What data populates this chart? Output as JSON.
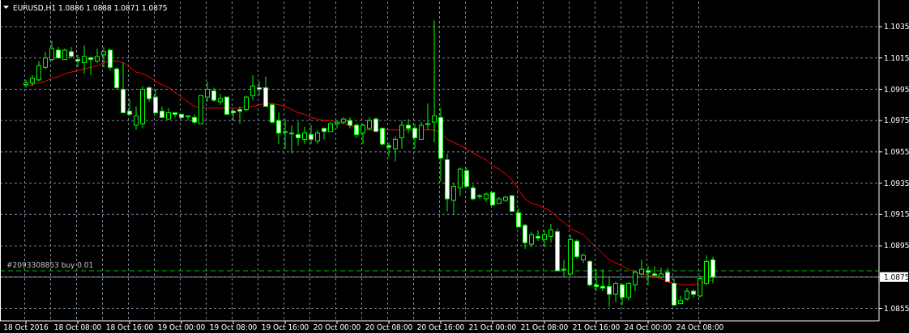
{
  "chart_data": {
    "type": "candlestick",
    "title": "EURUSD,H1 1.0886 1.0888 1.0871 1.0875",
    "categories": [
      "18 Oct 2016",
      null,
      null,
      null,
      null,
      null,
      null,
      null,
      "18 Oct 08:00",
      null,
      null,
      null,
      null,
      null,
      null,
      null,
      "18 Oct 16:00",
      null,
      null,
      null,
      null,
      null,
      null,
      null,
      "19 Oct 00:00",
      null,
      null,
      null,
      null,
      null,
      null,
      null,
      "19 Oct 08:00",
      null,
      null,
      null,
      null,
      null,
      null,
      null,
      "19 Oct 16:00",
      null,
      null,
      null,
      null,
      null,
      null,
      null,
      "20 Oct 00:00",
      null,
      null,
      null,
      null,
      null,
      null,
      null,
      "20 Oct 08:00",
      null,
      null,
      null,
      null,
      null,
      null,
      null,
      "20 Oct 16:00",
      null,
      null,
      null,
      null,
      null,
      null,
      null,
      "21 Oct 00:00",
      null,
      null,
      null,
      null,
      null,
      null,
      null,
      "21 Oct 08:00",
      null,
      null,
      null,
      null,
      null,
      null,
      null,
      "21 Oct 16:00",
      null,
      null,
      null,
      null,
      null,
      null,
      null,
      "24 Oct 00:00",
      null,
      null,
      null,
      null,
      null,
      null,
      null,
      "24 Oct 08:00",
      null,
      null
    ],
    "series": [
      {
        "type": "line",
        "color": "#ff0000",
        "values": [
          1.0997,
          1.0998,
          1.0999,
          1.1,
          1.1002,
          1.1003,
          1.1005,
          1.1006,
          1.1007,
          1.1008,
          1.1009,
          1.101,
          1.1012,
          1.1013,
          1.1013,
          1.1012,
          1.1009,
          1.1006,
          1.1005,
          1.1003,
          1.1,
          1.0998,
          1.0996,
          1.0993,
          1.099,
          1.0987,
          1.0984,
          1.0983,
          1.0983,
          1.0983,
          1.0983,
          1.0983,
          1.0983,
          1.0983,
          1.0984,
          1.0984,
          1.0985,
          1.0986,
          1.0986,
          1.0985,
          1.0984,
          1.0982,
          1.098,
          1.0979,
          1.0977,
          1.0976,
          1.0975,
          1.0975,
          1.0974,
          1.0973,
          1.0972,
          1.097,
          1.0969,
          1.0969,
          1.0969,
          1.0969,
          1.0969,
          1.0969,
          1.0969,
          1.0969,
          1.0969,
          1.0969,
          1.0969,
          1.0969,
          1.0967,
          1.0963,
          1.0961,
          1.0959,
          1.0957,
          1.0954,
          1.0952,
          1.095,
          1.0946,
          1.0944,
          1.0941,
          1.0937,
          1.0931,
          1.0925,
          1.0922,
          1.0921,
          1.0919,
          1.0917,
          1.0913,
          1.091,
          1.0906,
          1.0904,
          1.0902,
          1.0898,
          1.0894,
          1.089,
          1.0886,
          1.0884,
          1.0882,
          1.088,
          1.0878,
          1.0877,
          1.0876,
          1.0875,
          1.0874,
          1.0872,
          1.0871,
          1.087,
          1.087,
          1.087,
          1.0871,
          1.0872,
          1.0873
        ]
      },
      {
        "color": "#00ff00",
        "ohlc": [
          [
            1.0998,
            1.1001,
            1.0996,
            1.0999
          ],
          [
            1.0999,
            1.1004,
            1.0997,
            1.1002
          ],
          [
            1.1001,
            1.1013,
            1.1,
            1.101
          ],
          [
            1.1009,
            1.1019,
            1.1008,
            1.1015
          ],
          [
            1.1014,
            1.1026,
            1.1013,
            1.1021
          ],
          [
            1.102,
            1.1022,
            1.1015,
            1.1015
          ],
          [
            1.1014,
            1.1021,
            1.1014,
            1.102
          ],
          [
            1.1019,
            1.1022,
            1.1015,
            1.1016
          ],
          [
            1.1014,
            1.1017,
            1.1009,
            1.1013
          ],
          [
            1.1012,
            1.1023,
            1.1005,
            1.1016
          ],
          [
            1.1015,
            1.1016,
            1.1004,
            1.1014
          ],
          [
            1.1013,
            1.1021,
            1.1012,
            1.1016
          ],
          [
            1.1017,
            1.1022,
            1.1009,
            1.1019
          ],
          [
            1.102,
            1.1021,
            1.1007,
            1.1009
          ],
          [
            1.1008,
            1.1009,
            1.0995,
            1.0996
          ],
          [
            1.0995,
            1.1012,
            1.098,
            1.098
          ],
          [
            1.0981,
            1.0989,
            1.0978,
            1.0979
          ],
          [
            1.0972,
            1.0984,
            1.0969,
            1.0978
          ],
          [
            1.0973,
            1.0997,
            1.097,
            1.0995
          ],
          [
            1.0996,
            1.0997,
            1.0987,
            1.0989
          ],
          [
            1.099,
            1.0995,
            1.0979,
            1.098
          ],
          [
            1.0981,
            1.0984,
            1.0977,
            1.0977
          ],
          [
            1.0976,
            1.0983,
            1.0976,
            1.098
          ],
          [
            1.098,
            1.098,
            1.0977,
            1.0979
          ],
          [
            1.0979,
            1.0979,
            1.0976,
            1.0977
          ],
          [
            1.0978,
            1.0978,
            1.0975,
            1.0978
          ],
          [
            1.0977,
            1.0979,
            1.0973,
            1.0974
          ],
          [
            1.0973,
            1.0991,
            1.0973,
            1.0991
          ],
          [
            1.099,
            1.1,
            1.0987,
            1.0995
          ],
          [
            1.0994,
            1.0996,
            1.0987,
            1.0988
          ],
          [
            1.0987,
            1.0992,
            1.0985,
            1.0989
          ],
          [
            1.099,
            1.099,
            1.0979,
            1.0979
          ],
          [
            1.0981,
            1.0982,
            1.0975,
            1.098
          ],
          [
            1.0982,
            1.0984,
            1.0973,
            1.0981
          ],
          [
            1.0982,
            1.0991,
            1.0981,
            1.099
          ],
          [
            1.0991,
            1.1004,
            1.0988,
            1.0997
          ],
          [
            1.0996,
            1.1,
            1.0991,
            1.0995
          ],
          [
            1.0996,
            1.1003,
            1.0984,
            1.0984
          ],
          [
            1.0985,
            1.0986,
            1.0973,
            1.0974
          ],
          [
            1.0975,
            1.098,
            1.096,
            1.0967
          ],
          [
            1.0968,
            1.0976,
            1.0957,
            1.0968
          ],
          [
            1.0967,
            1.0972,
            1.0954,
            1.0967
          ],
          [
            1.0966,
            1.0974,
            1.0959,
            1.0964
          ],
          [
            1.0963,
            1.0971,
            1.096,
            1.0967
          ],
          [
            1.0966,
            1.0972,
            1.096,
            1.0963
          ],
          [
            1.0962,
            1.0969,
            1.096,
            1.0967
          ],
          [
            1.097,
            1.097,
            1.0963,
            1.0968
          ],
          [
            1.0968,
            1.0974,
            1.0968,
            1.0973
          ],
          [
            1.0973,
            1.0974,
            1.097,
            1.0974
          ],
          [
            1.0974,
            1.0977,
            1.0973,
            1.0976
          ],
          [
            1.0975,
            1.0977,
            1.097,
            1.0972
          ],
          [
            1.0972,
            1.0973,
            1.0964,
            1.0966
          ],
          [
            1.0967,
            1.0973,
            1.096,
            1.0972
          ],
          [
            1.097,
            1.0977,
            1.0969,
            1.0975
          ],
          [
            1.0976,
            1.0977,
            1.0968,
            1.0968
          ],
          [
            1.097,
            1.097,
            1.0959,
            1.096
          ],
          [
            1.0959,
            1.0961,
            1.0952,
            1.0958
          ],
          [
            1.0957,
            1.0965,
            1.0949,
            1.0963
          ],
          [
            1.0964,
            1.0975,
            1.0957,
            1.0972
          ],
          [
            1.0972,
            1.0976,
            1.0967,
            1.097
          ],
          [
            1.097,
            1.0973,
            1.0957,
            1.0964
          ],
          [
            1.0963,
            1.0974,
            1.0963,
            1.0972
          ],
          [
            1.0973,
            1.0986,
            1.0969,
            1.0973
          ],
          [
            1.0974,
            1.1039,
            1.0961,
            1.0978
          ],
          [
            1.0977,
            1.0983,
            1.0936,
            1.0951
          ],
          [
            1.095,
            1.0954,
            1.0917,
            1.0925
          ],
          [
            1.0924,
            1.0935,
            1.0915,
            1.0933
          ],
          [
            1.0932,
            1.0945,
            1.0927,
            1.0944
          ],
          [
            1.0943,
            1.0945,
            1.0932,
            1.0933
          ],
          [
            1.0932,
            1.0934,
            1.0924,
            1.0925
          ],
          [
            1.0927,
            1.0928,
            1.0925,
            1.0927
          ],
          [
            1.0925,
            1.0929,
            1.0923,
            1.0928
          ],
          [
            1.0929,
            1.0929,
            1.0921,
            1.0921
          ],
          [
            1.0922,
            1.0926,
            1.0922,
            1.0925
          ],
          [
            1.0924,
            1.0927,
            1.0923,
            1.0926
          ],
          [
            1.0927,
            1.0927,
            1.0917,
            1.0917
          ],
          [
            1.0916,
            1.0919,
            1.0907,
            1.0907
          ],
          [
            1.0908,
            1.0909,
            1.0893,
            1.0897
          ],
          [
            1.0896,
            1.0904,
            1.0894,
            1.0902
          ],
          [
            1.0901,
            1.0905,
            1.0898,
            1.09
          ],
          [
            1.0899,
            1.0905,
            1.0894,
            1.0902
          ],
          [
            1.0901,
            1.0909,
            1.0897,
            1.0905
          ],
          [
            1.0904,
            1.0906,
            1.0879,
            1.0879
          ],
          [
            1.088,
            1.0886,
            1.0875,
            1.088
          ],
          [
            1.0877,
            1.0902,
            1.0876,
            1.0899
          ],
          [
            1.0898,
            1.0899,
            1.0887,
            1.0888
          ],
          [
            1.0886,
            1.089,
            1.0884,
            1.0889
          ],
          [
            1.0885,
            1.0886,
            1.0869,
            1.087
          ],
          [
            1.087,
            1.088,
            1.0866,
            1.0869
          ],
          [
            1.0869,
            1.088,
            1.0866,
            1.0868
          ],
          [
            1.0869,
            1.0875,
            1.0856,
            1.0864
          ],
          [
            1.0864,
            1.0872,
            1.0859,
            1.0871
          ],
          [
            1.087,
            1.0871,
            1.0857,
            1.0862
          ],
          [
            1.0862,
            1.0872,
            1.086,
            1.0871
          ],
          [
            1.087,
            1.0879,
            1.0866,
            1.0878
          ],
          [
            1.0877,
            1.0886,
            1.0876,
            1.088
          ],
          [
            1.0879,
            1.0882,
            1.087,
            1.0878
          ],
          [
            1.0877,
            1.0882,
            1.0876,
            1.0876
          ],
          [
            1.0875,
            1.0881,
            1.0875,
            1.0877
          ],
          [
            1.0878,
            1.0881,
            1.0872,
            1.0872
          ],
          [
            1.0871,
            1.0874,
            1.0857,
            1.0857
          ],
          [
            1.0858,
            1.0863,
            1.0858,
            1.086
          ],
          [
            1.0861,
            1.0868,
            1.086,
            1.0866
          ],
          [
            1.0866,
            1.0867,
            1.0862,
            1.0864
          ],
          [
            1.0863,
            1.0876,
            1.0862,
            1.0874
          ],
          [
            1.0871,
            1.0889,
            1.087,
            1.0885
          ],
          [
            1.0886,
            1.0888,
            1.0871,
            1.0875
          ]
        ]
      }
    ],
    "ylim": [
      1.0847,
      1.1051
    ],
    "yticks": [
      1.0855,
      {
        "value": 1.0875,
        "label": null
      },
      1.0895,
      1.0915,
      1.0935,
      1.0955,
      1.0975,
      1.0995,
      1.1015,
      1.1035
    ],
    "grid": true,
    "ref_lines": [
      {
        "axis": "y",
        "value": 1.0879,
        "label": "#2093308853 buy 0.01",
        "color": "#00c000",
        "line_style": "dashed"
      },
      {
        "axis": "y",
        "value": 1.0875,
        "label": "1.0875",
        "color": "#778899",
        "line_style": "solid"
      }
    ]
  }
}
